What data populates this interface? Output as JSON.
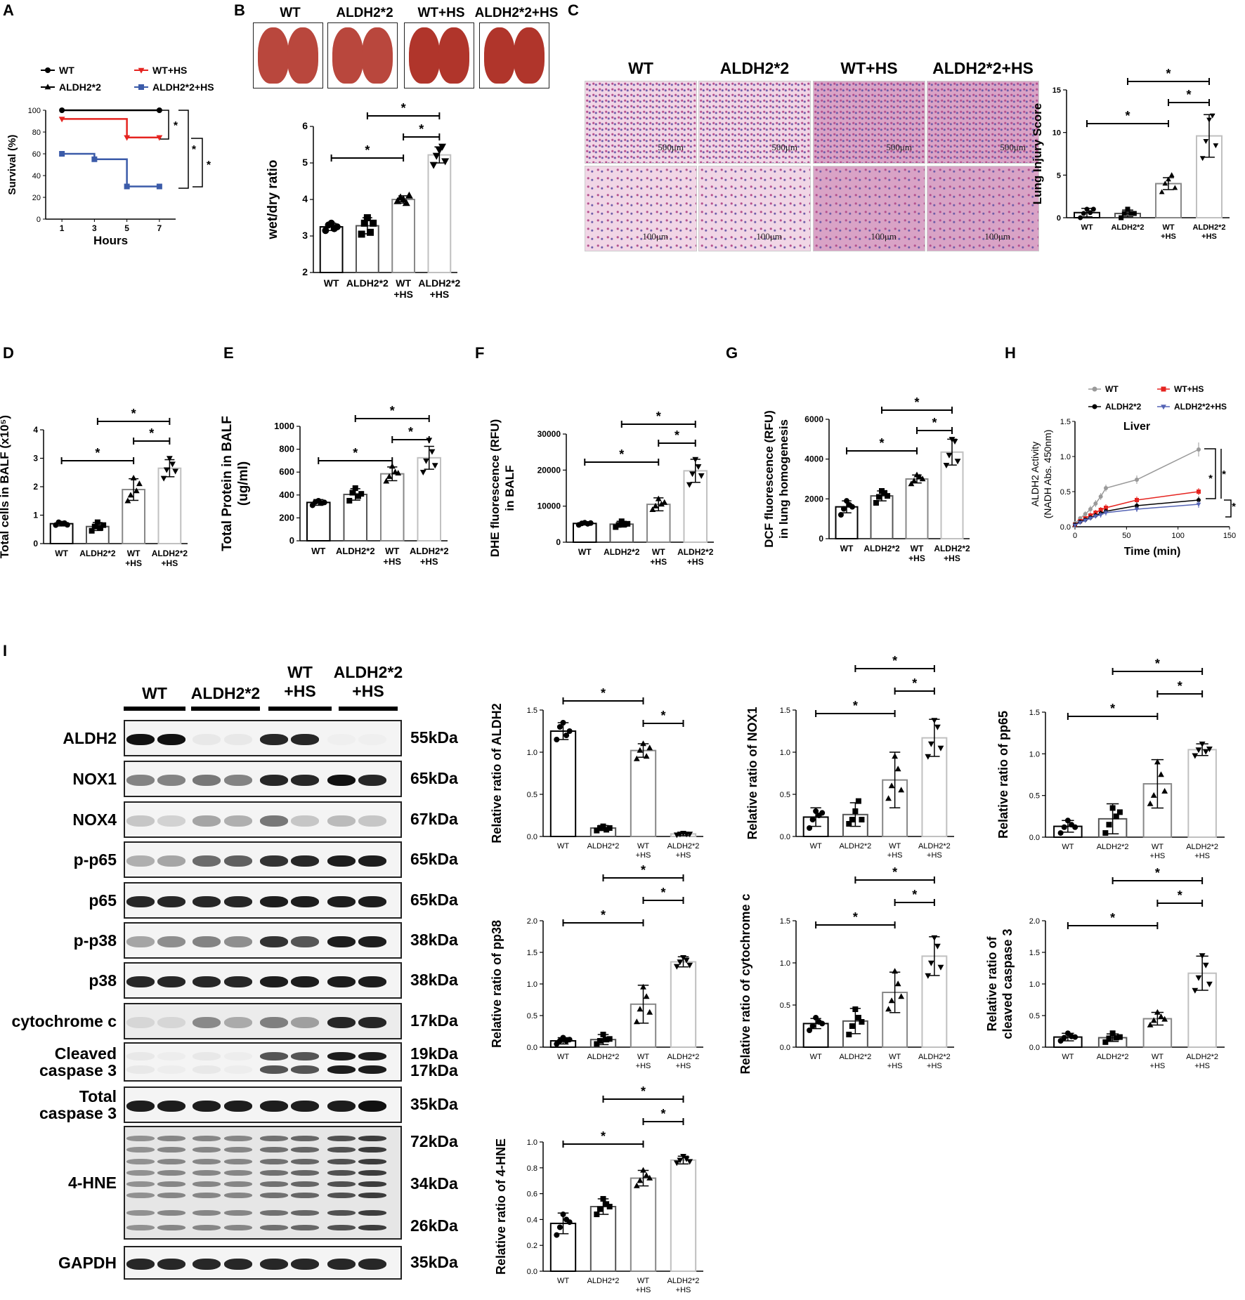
{
  "panels": [
    "A",
    "B",
    "C",
    "D",
    "E",
    "F",
    "G",
    "H",
    "I"
  ],
  "colors": {
    "wt": "#000000",
    "aldh": "#000000",
    "wths": "#e52420",
    "aldhhs": "#3b5ba9",
    "grey": "#9a9a9a",
    "red": "#e52420",
    "blue": "#5564b5",
    "lungTissue": "#b9473d",
    "heBg": "#f1d6e6",
    "heFg": "#b4508e"
  },
  "groups": [
    "WT",
    "ALDH2*2",
    "WT+HS",
    "ALDH2*2+HS"
  ],
  "groupTicks": [
    [
      "WT"
    ],
    [
      "ALDH2*2"
    ],
    [
      "WT",
      "+HS"
    ],
    [
      "ALDH2*2",
      "+HS"
    ]
  ],
  "sig": "*",
  "A": {
    "legend": [
      "WT",
      "WT+HS",
      "ALDH2*2",
      "ALDH2*2+HS"
    ],
    "ylabel": "Survival (%)",
    "xlabel": "Hours"
  },
  "C": {
    "scale_top": "500μm",
    "scale_bottom": "100μm"
  },
  "H": {
    "title": "Liver",
    "legend": [
      "WT",
      "WT+HS",
      "ALDH2*2",
      "ALDH2*2+HS"
    ],
    "ylabel": [
      "ALDH2 Activity",
      "(NADH Abs. 450nm)"
    ],
    "xlabel": "Time (min)"
  },
  "I": {
    "lane_groups": [
      [
        "WT"
      ],
      [
        "ALDH2*2"
      ],
      [
        "WT",
        "+HS"
      ],
      [
        "ALDH2*2",
        "+HS"
      ]
    ],
    "blots": [
      {
        "name": "ALDH2",
        "kda": [
          "55kDa"
        ]
      },
      {
        "name": "NOX1",
        "kda": [
          "65kDa"
        ]
      },
      {
        "name": "NOX4",
        "kda": [
          "67kDa"
        ]
      },
      {
        "name": "p-p65",
        "kda": [
          "65kDa"
        ]
      },
      {
        "name": "p65",
        "kda": [
          "65kDa"
        ]
      },
      {
        "name": "p-p38",
        "kda": [
          "38kDa"
        ]
      },
      {
        "name": "p38",
        "kda": [
          "38kDa"
        ]
      },
      {
        "name": "cytochrome c",
        "kda": [
          "17kDa"
        ]
      },
      {
        "name": "Cleaved caspase 3",
        "kda": [
          "19kDa",
          "17kDa"
        ]
      },
      {
        "name": "Total caspase 3",
        "kda": [
          "35kDa"
        ]
      },
      {
        "name": "4-HNE",
        "kda": [
          "72kDa",
          "34kDa",
          "26kDa"
        ]
      },
      {
        "name": "GAPDH",
        "kda": [
          "35kDa"
        ]
      }
    ]
  },
  "chart_data": [
    {
      "id": "A",
      "type": "line",
      "xlabel": "Hours",
      "ylabel": "Survival (%)",
      "xlim": [
        0,
        8
      ],
      "ylim": [
        0,
        100
      ],
      "x_ticks": [
        1,
        3,
        5,
        7
      ],
      "y_ticks": [
        0,
        20,
        40,
        60,
        80,
        100
      ],
      "series": [
        {
          "name": "WT",
          "x": [
            1,
            7
          ],
          "y": [
            100,
            100
          ]
        },
        {
          "name": "ALDH2*2",
          "x": [
            1,
            7
          ],
          "y": [
            100,
            100
          ]
        },
        {
          "name": "WT+HS",
          "x": [
            1,
            5,
            7
          ],
          "y": [
            92,
            75,
            75
          ]
        },
        {
          "name": "ALDH2*2+HS",
          "x": [
            1,
            3,
            5,
            7
          ],
          "y": [
            60,
            55,
            30,
            30
          ]
        }
      ]
    },
    {
      "id": "B",
      "type": "bar",
      "ylabel": "wet/dry ratio",
      "ylim": [
        2,
        6
      ],
      "y_ticks": [
        2,
        3,
        4,
        5,
        6
      ],
      "values": [
        3.25,
        3.28,
        4.0,
        5.22
      ],
      "errors": [
        0.1,
        0.22,
        0.1,
        0.22
      ],
      "points": [
        [
          3.15,
          3.3,
          3.35,
          3.2,
          3.25
        ],
        [
          3.05,
          3.35,
          3.5,
          3.1,
          3.35
        ],
        [
          3.95,
          4.05,
          4.0,
          3.9,
          4.1
        ],
        [
          4.95,
          5.2,
          5.35,
          5.45,
          5.05
        ]
      ]
    },
    {
      "id": "C",
      "type": "bar",
      "ylabel": "Lung Injury Score",
      "ylim": [
        0,
        15
      ],
      "y_ticks": [
        0,
        5,
        10,
        15
      ],
      "values": [
        0.6,
        0.5,
        4.0,
        9.6
      ],
      "errors": [
        0.5,
        0.4,
        0.7,
        2.5
      ],
      "points": [
        [
          0,
          0.5,
          1,
          0.6,
          1
        ],
        [
          0,
          0.5,
          1,
          0.5,
          0.5
        ],
        [
          3,
          4,
          4.5,
          5,
          3.5
        ],
        [
          7,
          9,
          11.5,
          12,
          8.5
        ]
      ]
    },
    {
      "id": "D",
      "type": "bar",
      "ylabel": "Total cells in BALF (x10⁵)",
      "ylim": [
        0,
        4
      ],
      "y_ticks": [
        0,
        1,
        2,
        3,
        4
      ],
      "values": [
        0.7,
        0.6,
        1.9,
        2.65
      ],
      "errors": [
        0.08,
        0.14,
        0.38,
        0.3
      ],
      "points": [
        [
          0.65,
          0.75,
          0.7,
          0.72,
          0.66
        ],
        [
          0.45,
          0.6,
          0.75,
          0.55,
          0.65
        ],
        [
          1.5,
          1.7,
          2.3,
          1.85,
          2.1
        ],
        [
          2.3,
          2.6,
          3.0,
          2.8,
          2.55
        ]
      ]
    },
    {
      "id": "E",
      "type": "bar",
      "ylabel": [
        "Total Protein in BALF",
        "(ug/ml)"
      ],
      "ylim": [
        0,
        1000
      ],
      "y_ticks": [
        0,
        200,
        400,
        600,
        800,
        1000
      ],
      "values": [
        335,
        405,
        585,
        725
      ],
      "errors": [
        25,
        50,
        60,
        100
      ],
      "points": [
        [
          310,
          340,
          350,
          330,
          335
        ],
        [
          350,
          420,
          460,
          390,
          410
        ],
        [
          520,
          560,
          650,
          600,
          590
        ],
        [
          600,
          700,
          880,
          780,
          660
        ]
      ]
    },
    {
      "id": "F",
      "type": "bar",
      "ylabel": [
        "DHE fluorescence (RFU)",
        "in BALF"
      ],
      "ylim": [
        0,
        30000
      ],
      "y_ticks": [
        0,
        10000,
        20000,
        30000
      ],
      "values": [
        5200,
        5000,
        10500,
        19800
      ],
      "errors": [
        400,
        800,
        1800,
        3200
      ],
      "points": [
        [
          4800,
          5200,
          5400,
          5100,
          5300
        ],
        [
          4200,
          4800,
          5800,
          5000,
          5100
        ],
        [
          9000,
          10000,
          12000,
          10500,
          11000
        ],
        [
          16000,
          19000,
          23000,
          21000,
          18500
        ]
      ]
    },
    {
      "id": "G",
      "type": "bar",
      "ylabel": [
        "DCF fluorescence (RFU)",
        "in lung homogenesis"
      ],
      "ylim": [
        0,
        6000
      ],
      "y_ticks": [
        0,
        2000,
        4000,
        6000
      ],
      "values": [
        1600,
        2150,
        3000,
        4350
      ],
      "errors": [
        300,
        250,
        200,
        650
      ],
      "points": [
        [
          1200,
          1500,
          1900,
          1700,
          1600
        ],
        [
          1800,
          2100,
          2400,
          2300,
          2150
        ],
        [
          2750,
          2900,
          3200,
          3100,
          3000
        ],
        [
          3700,
          4200,
          5000,
          4900,
          3900
        ]
      ]
    },
    {
      "id": "H",
      "type": "line",
      "title": "Liver",
      "xlabel": "Time (min)",
      "ylabel": "ALDH2 Activity (NADH Abs. 450nm)",
      "xlim": [
        0,
        150
      ],
      "ylim": [
        0,
        1.5
      ],
      "x_ticks": [
        0,
        50,
        100,
        150
      ],
      "y_ticks": [
        0.0,
        0.5,
        1.0,
        1.5
      ],
      "series": [
        {
          "name": "WT",
          "x": [
            0,
            5,
            10,
            15,
            20,
            25,
            30,
            60,
            120
          ],
          "y": [
            0.05,
            0.12,
            0.18,
            0.25,
            0.33,
            0.43,
            0.55,
            0.67,
            1.1
          ],
          "err": [
            0.02,
            0.03,
            0.04,
            0.05,
            0.05,
            0.05,
            0.05,
            0.06,
            0.1
          ]
        },
        {
          "name": "WT+HS",
          "x": [
            0,
            5,
            10,
            15,
            20,
            25,
            30,
            60,
            120
          ],
          "y": [
            0.03,
            0.08,
            0.12,
            0.16,
            0.2,
            0.24,
            0.27,
            0.38,
            0.5
          ],
          "err": [
            0.02,
            0.03,
            0.03,
            0.04,
            0.04,
            0.04,
            0.05,
            0.05,
            0.05
          ]
        },
        {
          "name": "ALDH2*2",
          "x": [
            0,
            5,
            10,
            15,
            20,
            25,
            30,
            60,
            120
          ],
          "y": [
            0.03,
            0.07,
            0.1,
            0.13,
            0.16,
            0.19,
            0.22,
            0.3,
            0.38
          ],
          "err": [
            0.02,
            0.03,
            0.03,
            0.03,
            0.04,
            0.04,
            0.04,
            0.05,
            0.05
          ]
        },
        {
          "name": "ALDH2*2+HS",
          "x": [
            0,
            5,
            10,
            15,
            20,
            25,
            30,
            60,
            120
          ],
          "y": [
            0.02,
            0.06,
            0.09,
            0.12,
            0.15,
            0.17,
            0.2,
            0.25,
            0.32
          ],
          "err": [
            0.02,
            0.02,
            0.03,
            0.03,
            0.03,
            0.04,
            0.04,
            0.04,
            0.05
          ]
        }
      ]
    },
    {
      "id": "I-ALDH2",
      "type": "bar",
      "ylabel": "Relative ratio of ALDH2",
      "ylim": [
        0,
        1.5
      ],
      "y_ticks": [
        0.0,
        0.5,
        1.0,
        1.5
      ],
      "values": [
        1.25,
        0.1,
        1.02,
        0.03
      ],
      "errors": [
        0.1,
        0.03,
        0.08,
        0.02
      ],
      "points": [
        [
          1.15,
          1.3,
          1.35,
          1.2,
          1.25
        ],
        [
          0.07,
          0.1,
          0.12,
          0.08,
          0.1
        ],
        [
          0.92,
          1.02,
          1.1,
          0.95,
          1.05
        ],
        [
          0.02,
          0.03,
          0.04,
          0.03,
          0.03
        ]
      ]
    },
    {
      "id": "I-NOX1",
      "type": "bar",
      "ylabel": "Relative ratio of NOX1",
      "ylim": [
        0,
        1.5
      ],
      "y_ticks": [
        0.0,
        0.5,
        1.0,
        1.5
      ],
      "values": [
        0.23,
        0.26,
        0.67,
        1.17
      ],
      "errors": [
        0.11,
        0.14,
        0.33,
        0.22
      ],
      "points": [
        [
          0.1,
          0.2,
          0.3,
          0.25,
          0.28
        ],
        [
          0.15,
          0.2,
          0.3,
          0.42,
          0.2
        ],
        [
          0.45,
          0.6,
          0.95,
          0.8,
          0.55
        ],
        [
          0.95,
          1.1,
          1.38,
          1.3,
          1.05
        ]
      ]
    },
    {
      "id": "I-pp65",
      "type": "bar",
      "ylabel": "Relative ratio of pp65",
      "ylim": [
        0,
        1.5
      ],
      "y_ticks": [
        0.0,
        0.5,
        1.0,
        1.5
      ],
      "values": [
        0.13,
        0.22,
        0.64,
        1.05
      ],
      "errors": [
        0.07,
        0.18,
        0.29,
        0.07
      ],
      "points": [
        [
          0.05,
          0.12,
          0.2,
          0.15,
          0.12
        ],
        [
          0.05,
          0.15,
          0.35,
          0.25,
          0.3
        ],
        [
          0.4,
          0.5,
          0.9,
          0.75,
          0.55
        ],
        [
          0.98,
          1.05,
          1.12,
          1.03,
          1.06
        ]
      ]
    },
    {
      "id": "I-pp38",
      "type": "bar",
      "ylabel": "Relative ratio of pp38",
      "ylim": [
        0,
        2.0
      ],
      "y_ticks": [
        0.0,
        0.5,
        1.0,
        1.5,
        2.0
      ],
      "values": [
        0.1,
        0.12,
        0.68,
        1.35
      ],
      "errors": [
        0.05,
        0.08,
        0.3,
        0.08
      ],
      "points": [
        [
          0.05,
          0.1,
          0.15,
          0.1,
          0.12
        ],
        [
          0.05,
          0.1,
          0.2,
          0.12,
          0.13
        ],
        [
          0.4,
          0.6,
          0.95,
          0.8,
          0.55
        ],
        [
          1.28,
          1.35,
          1.42,
          1.38,
          1.3
        ]
      ]
    },
    {
      "id": "I-cytc",
      "type": "bar",
      "ylabel": "Relative ratio of cytochrome c",
      "ylim": [
        0,
        1.5
      ],
      "y_ticks": [
        0.0,
        0.5,
        1.0,
        1.5
      ],
      "values": [
        0.28,
        0.31,
        0.65,
        1.08
      ],
      "errors": [
        0.06,
        0.15,
        0.24,
        0.23
      ],
      "points": [
        [
          0.2,
          0.25,
          0.35,
          0.3,
          0.28
        ],
        [
          0.15,
          0.25,
          0.45,
          0.35,
          0.3
        ],
        [
          0.45,
          0.55,
          0.9,
          0.75,
          0.6
        ],
        [
          0.85,
          1.0,
          1.3,
          1.2,
          0.95
        ]
      ]
    },
    {
      "id": "I-casp3",
      "type": "bar",
      "ylabel": [
        "Relative ratio of",
        "cleaved caspase 3"
      ],
      "ylim": [
        0,
        2.0
      ],
      "y_ticks": [
        0.0,
        0.5,
        1.0,
        1.5,
        2.0
      ],
      "values": [
        0.16,
        0.15,
        0.45,
        1.17
      ],
      "errors": [
        0.06,
        0.06,
        0.1,
        0.27
      ],
      "points": [
        [
          0.1,
          0.15,
          0.22,
          0.17,
          0.16
        ],
        [
          0.08,
          0.14,
          0.22,
          0.15,
          0.16
        ],
        [
          0.35,
          0.42,
          0.55,
          0.48,
          0.44
        ],
        [
          0.9,
          1.1,
          1.45,
          1.3,
          1.0
        ]
      ]
    },
    {
      "id": "I-4HNE",
      "type": "bar",
      "ylabel": "Relative ratio of 4-HNE",
      "ylim": [
        0,
        1.0
      ],
      "y_ticks": [
        0.0,
        0.2,
        0.4,
        0.6,
        0.8,
        1.0
      ],
      "values": [
        0.37,
        0.5,
        0.72,
        0.86
      ],
      "errors": [
        0.08,
        0.06,
        0.06,
        0.03
      ],
      "points": [
        [
          0.28,
          0.34,
          0.44,
          0.4,
          0.38
        ],
        [
          0.44,
          0.48,
          0.56,
          0.52,
          0.5
        ],
        [
          0.66,
          0.7,
          0.78,
          0.74,
          0.72
        ],
        [
          0.84,
          0.86,
          0.89,
          0.87,
          0.85
        ]
      ]
    }
  ]
}
